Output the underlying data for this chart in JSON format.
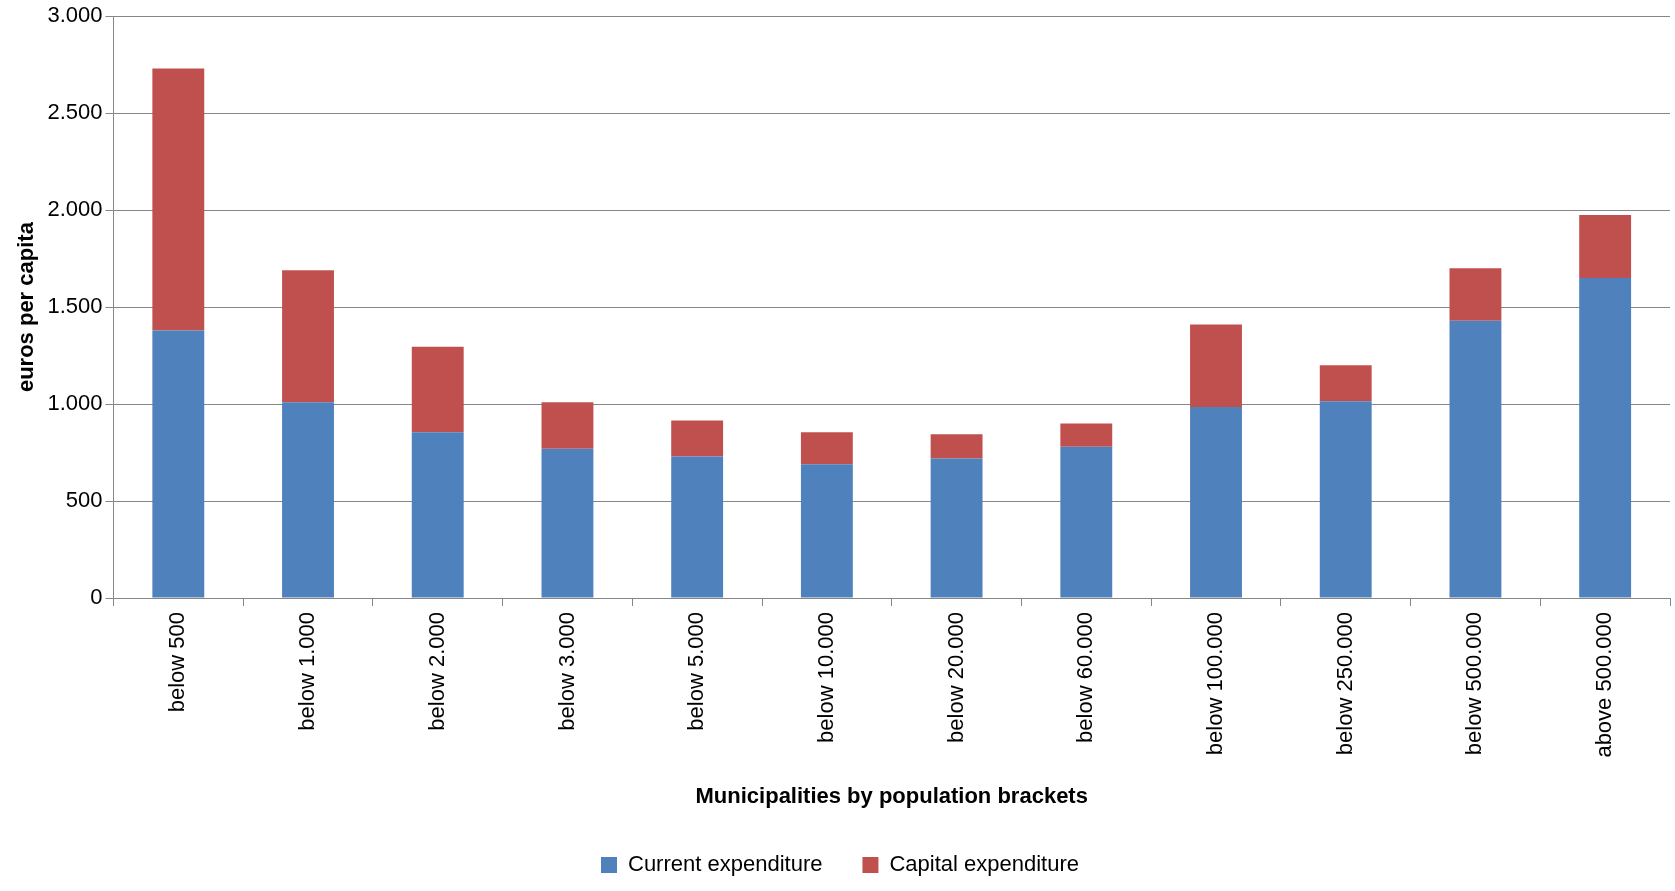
{
  "chart_data": {
    "type": "bar",
    "stacked": true,
    "xlabel": "Municipalities by population brackets",
    "ylabel": "euros per capita",
    "categories": [
      "below 500",
      "below 1.000",
      "below 2.000",
      "below 3.000",
      "below 5.000",
      "below 10.000",
      "below 20.000",
      "below 60.000",
      "below 100.000",
      "below 250.000",
      "below 500.000",
      "above 500.000"
    ],
    "series": [
      {
        "name": "Current expenditure",
        "color": "#4f81bd",
        "values": [
          1380,
          1010,
          855,
          770,
          730,
          690,
          720,
          780,
          985,
          1015,
          1430,
          1650
        ]
      },
      {
        "name": "Capital expenditure",
        "color": "#c0504d",
        "values": [
          1350,
          680,
          440,
          240,
          185,
          165,
          125,
          120,
          425,
          185,
          270,
          325
        ]
      }
    ],
    "ylim": [
      0,
      3000
    ],
    "yticks": [
      0,
      {
        "value": 500,
        "label": "500"
      },
      {
        "value": 1000,
        "label": "1.000"
      },
      {
        "value": 1500,
        "label": "1.500"
      },
      {
        "value": 2000,
        "label": "2.000"
      },
      {
        "value": 2500,
        "label": "2.500"
      },
      {
        "value": 3000,
        "label": "3.000"
      }
    ],
    "grid": "y",
    "legend": "bottom"
  }
}
